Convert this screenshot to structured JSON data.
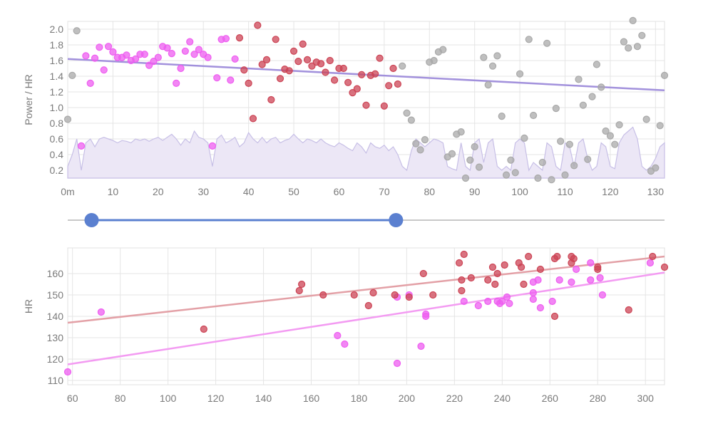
{
  "colors": {
    "pink": "#ee5ef0",
    "red": "#cc4455",
    "gray": "#a9a9a9",
    "trend_top": "#a291dc",
    "trend_red": "#e3a0a6",
    "trend_pink": "#f39bf2",
    "area_fill": "#ece7f6",
    "area_line": "#c7bfe6",
    "slider": "#5b80d0",
    "grid": "#e5e5e5"
  },
  "slider": {
    "low_fraction": 0.04,
    "high_fraction": 0.55
  },
  "chart_data": [
    {
      "type": "scatter",
      "ylabel": "Power / HR",
      "xlabel": "",
      "xlim": [
        0,
        132
      ],
      "ylim": [
        0.1,
        2.1
      ],
      "xticks": [
        "0m",
        "10",
        "20",
        "30",
        "40",
        "50",
        "60",
        "70",
        "80",
        "90",
        "100",
        "110",
        "120",
        "130"
      ],
      "yticks": [
        "0.2",
        "0.4",
        "0.6",
        "0.8",
        "1.0",
        "1.2",
        "1.4",
        "1.6",
        "1.8",
        "2.0"
      ],
      "grid": true,
      "trendline": {
        "from": [
          0,
          1.62
        ],
        "to": [
          132,
          1.22
        ]
      },
      "series": [
        {
          "color_key": "pink",
          "points": [
            [
              3,
              0.51
            ],
            [
              4,
              1.66
            ],
            [
              5,
              1.31
            ],
            [
              6,
              1.63
            ],
            [
              7,
              1.77
            ],
            [
              8,
              1.48
            ],
            [
              9,
              1.78
            ],
            [
              10,
              1.71
            ],
            [
              11,
              1.64
            ],
            [
              12,
              1.64
            ],
            [
              13,
              1.67
            ],
            [
              14,
              1.6
            ],
            [
              15,
              1.62
            ],
            [
              16,
              1.68
            ],
            [
              17,
              1.68
            ],
            [
              18,
              1.54
            ],
            [
              19,
              1.59
            ],
            [
              20,
              1.64
            ],
            [
              21,
              1.78
            ],
            [
              22,
              1.76
            ],
            [
              23,
              1.69
            ],
            [
              24,
              1.31
            ],
            [
              25,
              1.5
            ],
            [
              26,
              1.72
            ],
            [
              27,
              1.84
            ],
            [
              28,
              1.68
            ],
            [
              29,
              1.74
            ],
            [
              30,
              1.68
            ],
            [
              31,
              1.64
            ],
            [
              32,
              0.51
            ],
            [
              33,
              1.38
            ],
            [
              34,
              1.87
            ],
            [
              35,
              1.88
            ],
            [
              36,
              1.35
            ],
            [
              37,
              1.62
            ]
          ]
        },
        {
          "color_key": "red",
          "points": [
            [
              38,
              1.89
            ],
            [
              39,
              1.48
            ],
            [
              40,
              1.31
            ],
            [
              41,
              0.86
            ],
            [
              42,
              2.05
            ],
            [
              43,
              1.55
            ],
            [
              44,
              1.61
            ],
            [
              45,
              1.1
            ],
            [
              46,
              1.87
            ],
            [
              47,
              1.37
            ],
            [
              48,
              1.49
            ],
            [
              49,
              1.47
            ],
            [
              50,
              1.72
            ],
            [
              51,
              1.59
            ],
            [
              52,
              1.81
            ],
            [
              53,
              1.61
            ],
            [
              54,
              1.53
            ],
            [
              55,
              1.58
            ],
            [
              56,
              1.56
            ],
            [
              57,
              1.45
            ],
            [
              58,
              1.6
            ],
            [
              59,
              1.35
            ],
            [
              60,
              1.5
            ],
            [
              61,
              1.5
            ],
            [
              62,
              1.32
            ],
            [
              63,
              1.19
            ],
            [
              64,
              1.24
            ],
            [
              65,
              1.42
            ],
            [
              66,
              1.03
            ],
            [
              67,
              1.41
            ],
            [
              68,
              1.43
            ],
            [
              69,
              1.63
            ],
            [
              70,
              1.02
            ],
            [
              71,
              1.28
            ],
            [
              72,
              1.5
            ],
            [
              73,
              1.3
            ]
          ]
        },
        {
          "color_key": "gray",
          "points": [
            [
              0,
              0.85
            ],
            [
              1,
              1.41
            ],
            [
              2,
              1.98
            ],
            [
              74,
              1.53
            ],
            [
              75,
              0.93
            ],
            [
              76,
              0.84
            ],
            [
              77,
              0.54
            ],
            [
              78,
              0.46
            ],
            [
              79,
              0.59
            ],
            [
              80,
              1.58
            ],
            [
              81,
              1.6
            ],
            [
              82,
              1.71
            ],
            [
              83,
              1.74
            ],
            [
              84,
              0.37
            ],
            [
              85,
              0.41
            ],
            [
              86,
              0.66
            ],
            [
              87,
              0.69
            ],
            [
              88,
              0.1
            ],
            [
              89,
              0.33
            ],
            [
              90,
              0.5
            ],
            [
              91,
              0.24
            ],
            [
              92,
              1.64
            ],
            [
              93,
              1.29
            ],
            [
              94,
              1.53
            ],
            [
              95,
              1.66
            ],
            [
              96,
              0.89
            ],
            [
              97,
              0.14
            ],
            [
              98,
              0.33
            ],
            [
              99,
              0.17
            ],
            [
              100,
              1.43
            ],
            [
              101,
              0.61
            ],
            [
              102,
              1.87
            ],
            [
              103,
              0.9
            ],
            [
              104,
              0.1
            ],
            [
              105,
              0.3
            ],
            [
              106,
              1.82
            ],
            [
              107,
              0.08
            ],
            [
              108,
              0.99
            ],
            [
              109,
              0.57
            ],
            [
              110,
              0.14
            ],
            [
              111,
              0.53
            ],
            [
              112,
              0.26
            ],
            [
              113,
              1.36
            ],
            [
              114,
              1.03
            ],
            [
              115,
              0.34
            ],
            [
              116,
              1.14
            ],
            [
              117,
              1.55
            ],
            [
              118,
              1.26
            ],
            [
              119,
              0.7
            ],
            [
              120,
              0.64
            ],
            [
              121,
              0.53
            ],
            [
              122,
              0.78
            ],
            [
              123,
              1.84
            ],
            [
              124,
              1.76
            ],
            [
              125,
              2.11
            ],
            [
              126,
              1.78
            ],
            [
              127,
              1.92
            ],
            [
              128,
              0.85
            ],
            [
              129,
              0.19
            ],
            [
              130,
              0.23
            ],
            [
              131,
              0.77
            ],
            [
              132,
              1.41
            ]
          ]
        }
      ],
      "area": [
        0.25,
        0.4,
        0.6,
        0.2,
        0.55,
        0.6,
        0.5,
        0.6,
        0.62,
        0.6,
        0.58,
        0.55,
        0.58,
        0.57,
        0.55,
        0.6,
        0.58,
        0.6,
        0.57,
        0.6,
        0.62,
        0.58,
        0.62,
        0.66,
        0.6,
        0.52,
        0.6,
        0.55,
        0.7,
        0.62,
        0.6,
        0.55,
        0.25,
        0.6,
        0.65,
        0.55,
        0.58,
        0.62,
        0.5,
        0.55,
        0.68,
        0.6,
        0.55,
        0.62,
        0.55,
        0.6,
        0.62,
        0.55,
        0.58,
        0.6,
        0.66,
        0.6,
        0.55,
        0.6,
        0.58,
        0.55,
        0.6,
        0.55,
        0.52,
        0.5,
        0.55,
        0.52,
        0.48,
        0.45,
        0.55,
        0.5,
        0.42,
        0.55,
        0.5,
        0.48,
        0.52,
        0.45,
        0.5,
        0.4,
        0.25,
        0.2,
        0.45,
        0.6,
        0.55,
        0.5,
        0.55,
        0.6,
        0.58,
        0.55,
        0.25,
        0.22,
        0.2,
        0.55,
        0.25,
        0.2,
        0.55,
        0.6,
        0.3,
        0.55,
        0.6,
        0.25,
        0.2,
        0.25,
        0.2,
        0.55,
        0.6,
        0.55,
        0.2,
        0.3,
        0.25,
        0.2,
        0.55,
        0.5,
        0.25,
        0.2,
        0.55,
        0.5,
        0.25,
        0.55,
        0.6,
        0.35,
        0.2,
        0.25,
        0.55,
        0.5,
        0.25,
        0.22,
        0.55,
        0.65,
        0.7,
        0.75,
        0.6,
        0.25,
        0.2,
        0.25,
        0.35,
        0.5,
        0.55
      ]
    },
    {
      "type": "scatter",
      "ylabel": "HR",
      "xlabel": "",
      "xlim": [
        58,
        308
      ],
      "ylim": [
        108,
        172
      ],
      "xticks": [
        "60",
        "80",
        "100",
        "120",
        "140",
        "160",
        "180",
        "200",
        "220",
        "240",
        "260",
        "280",
        "300"
      ],
      "yticks": [
        "110",
        "120",
        "130",
        "140",
        "150",
        "160"
      ],
      "grid": true,
      "trendlines": [
        {
          "color_key": "trend_red",
          "from": [
            58,
            137
          ],
          "to": [
            308,
            168
          ]
        },
        {
          "color_key": "trend_pink",
          "from": [
            58,
            117.5
          ],
          "to": [
            308,
            160.5
          ]
        }
      ],
      "series": [
        {
          "color_key": "pink",
          "points": [
            [
              58,
              114
            ],
            [
              72,
              142
            ],
            [
              171,
              131
            ],
            [
              174,
              127
            ],
            [
              196,
              149
            ],
            [
              196,
              118
            ],
            [
              201,
              150
            ],
            [
              206,
              126
            ],
            [
              208,
              140
            ],
            [
              208,
              141
            ],
            [
              224,
              147
            ],
            [
              230,
              145
            ],
            [
              234,
              147
            ],
            [
              238,
              147
            ],
            [
              239,
              146
            ],
            [
              240,
              147
            ],
            [
              242,
              149
            ],
            [
              243,
              146
            ],
            [
              253,
              148
            ],
            [
              253,
              156
            ],
            [
              253,
              151
            ],
            [
              255,
              157
            ],
            [
              256,
              144
            ],
            [
              261,
              147
            ],
            [
              264,
              157
            ],
            [
              269,
              156
            ],
            [
              271,
              162
            ],
            [
              277,
              157
            ],
            [
              277,
              165
            ],
            [
              281,
              158
            ],
            [
              282,
              150
            ],
            [
              302,
              165
            ]
          ]
        },
        {
          "color_key": "red",
          "points": [
            [
              115,
              134
            ],
            [
              155,
              152
            ],
            [
              156,
              155
            ],
            [
              165,
              150
            ],
            [
              178,
              150
            ],
            [
              184,
              145
            ],
            [
              186,
              151
            ],
            [
              195,
              150
            ],
            [
              201,
              149
            ],
            [
              207,
              160
            ],
            [
              211,
              150
            ],
            [
              222,
              165
            ],
            [
              223,
              157
            ],
            [
              223,
              152
            ],
            [
              224,
              169
            ],
            [
              227,
              158
            ],
            [
              234,
              157
            ],
            [
              236,
              163
            ],
            [
              237,
              155
            ],
            [
              238,
              160
            ],
            [
              241,
              164
            ],
            [
              247,
              165
            ],
            [
              248,
              163
            ],
            [
              249,
              155
            ],
            [
              251,
              168
            ],
            [
              256,
              162
            ],
            [
              262,
              167
            ],
            [
              262,
              140
            ],
            [
              263,
              168
            ],
            [
              269,
              168
            ],
            [
              269,
              165
            ],
            [
              270,
              167
            ],
            [
              280,
              163
            ],
            [
              280,
              162
            ],
            [
              293,
              143
            ],
            [
              303,
              168
            ],
            [
              308,
              163
            ]
          ]
        }
      ]
    }
  ]
}
